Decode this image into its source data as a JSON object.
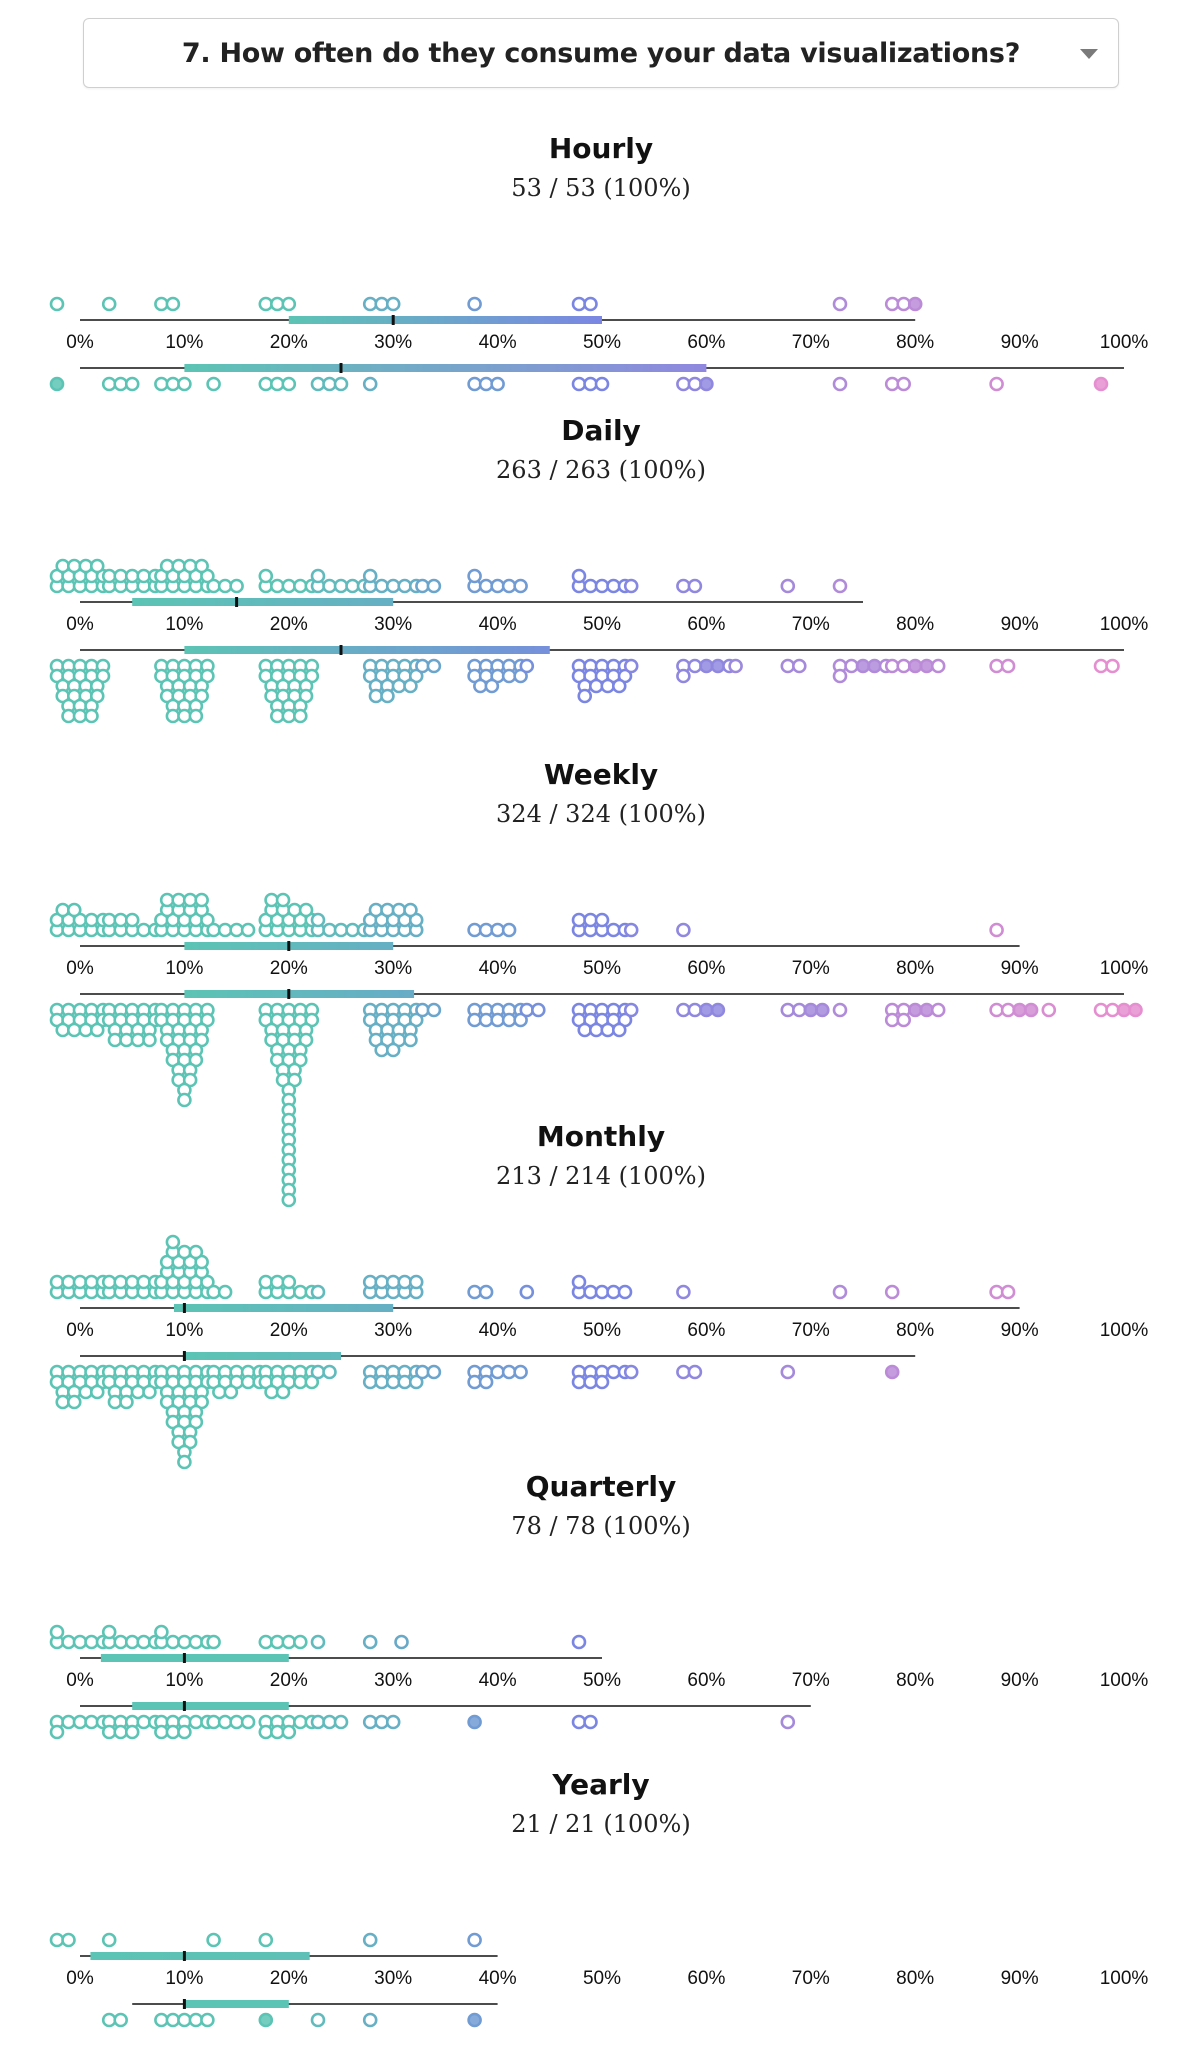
{
  "question": {
    "label": "7. How often do they consume your data visualizations?",
    "caret_icon": "chevron-down-icon"
  },
  "colors": {
    "low": "#5cc4b4",
    "mid": "#7b86e3",
    "high": "#e58fd0",
    "tick_marker": "#111111"
  },
  "axis": {
    "ticks": [
      "0%",
      "10%",
      "20%",
      "30%",
      "40%",
      "50%",
      "60%",
      "70%",
      "80%",
      "90%",
      "100%"
    ]
  },
  "chart_data": [
    {
      "type": "scatter",
      "title": "Hourly",
      "count_label": "53 / 53 (100%)",
      "xlim": [
        0,
        100
      ],
      "top": {
        "line": [
          0,
          80
        ],
        "box": [
          20,
          50
        ],
        "median": 30,
        "points": [
          [
            0,
            1
          ],
          [
            5,
            1
          ],
          [
            10,
            2
          ],
          [
            20,
            3
          ],
          [
            30,
            3
          ],
          [
            40,
            1
          ],
          [
            50,
            2
          ],
          [
            75,
            1
          ],
          [
            80,
            3
          ]
        ]
      },
      "bottom": {
        "line": [
          0,
          100
        ],
        "box": [
          10,
          60
        ],
        "median": 25,
        "points": [
          [
            0,
            1
          ],
          [
            5,
            3
          ],
          [
            10,
            3
          ],
          [
            15,
            1
          ],
          [
            20,
            3
          ],
          [
            25,
            3
          ],
          [
            30,
            1
          ],
          [
            40,
            3
          ],
          [
            50,
            3
          ],
          [
            60,
            3
          ],
          [
            75,
            1
          ],
          [
            80,
            2
          ],
          [
            90,
            1
          ],
          [
            100,
            1
          ]
        ]
      }
    },
    {
      "type": "scatter",
      "title": "Daily",
      "count_label": "263 / 263 (100%)",
      "xlim": [
        0,
        100
      ],
      "top": {
        "line": [
          0,
          75
        ],
        "box": [
          5,
          30
        ],
        "median": 15,
        "points": [
          [
            0,
            14
          ],
          [
            5,
            10
          ],
          [
            10,
            14
          ],
          [
            15,
            3
          ],
          [
            20,
            6
          ],
          [
            25,
            6
          ],
          [
            30,
            6
          ],
          [
            35,
            2
          ],
          [
            40,
            6
          ],
          [
            50,
            6
          ],
          [
            55,
            1
          ],
          [
            60,
            2
          ],
          [
            70,
            1
          ],
          [
            75,
            1
          ]
        ]
      },
      "bottom": {
        "line": [
          0,
          100
        ],
        "box": [
          10,
          45
        ],
        "median": 25,
        "points": [
          [
            0,
            24
          ],
          [
            10,
            24
          ],
          [
            20,
            24
          ],
          [
            30,
            16
          ],
          [
            35,
            2
          ],
          [
            40,
            12
          ],
          [
            45,
            1
          ],
          [
            50,
            15
          ],
          [
            55,
            1
          ],
          [
            60,
            6
          ],
          [
            65,
            1
          ],
          [
            70,
            2
          ],
          [
            75,
            6
          ],
          [
            80,
            5
          ],
          [
            90,
            2
          ],
          [
            100,
            2
          ]
        ]
      }
    },
    {
      "type": "scatter",
      "title": "Weekly",
      "count_label": "324 / 324 (100%)",
      "xlim": [
        0,
        100
      ],
      "top": {
        "line": [
          0,
          90
        ],
        "box": [
          10,
          30
        ],
        "median": 20,
        "points": [
          [
            0,
            12
          ],
          [
            5,
            8
          ],
          [
            10,
            18
          ],
          [
            15,
            4
          ],
          [
            20,
            16
          ],
          [
            25,
            6
          ],
          [
            30,
            14
          ],
          [
            40,
            4
          ],
          [
            50,
            8
          ],
          [
            55,
            1
          ],
          [
            60,
            1
          ],
          [
            90,
            1
          ]
        ]
      },
      "bottom": {
        "line": [
          0,
          100
        ],
        "box": [
          10,
          32
        ],
        "median": 20,
        "points": [
          [
            0,
            14
          ],
          [
            5,
            18
          ],
          [
            10,
            30
          ],
          [
            20,
            40
          ],
          [
            30,
            20
          ],
          [
            35,
            2
          ],
          [
            40,
            10
          ],
          [
            45,
            2
          ],
          [
            50,
            14
          ],
          [
            55,
            1
          ],
          [
            60,
            4
          ],
          [
            70,
            4
          ],
          [
            75,
            1
          ],
          [
            80,
            7
          ],
          [
            90,
            4
          ],
          [
            95,
            1
          ],
          [
            100,
            4
          ]
        ]
      }
    },
    {
      "type": "scatter",
      "title": "Monthly",
      "count_label": "213 / 214 (100%)",
      "xlim": [
        0,
        100
      ],
      "top": {
        "line": [
          0,
          90
        ],
        "box": [
          9,
          30
        ],
        "median": 10,
        "points": [
          [
            0,
            10
          ],
          [
            5,
            10
          ],
          [
            10,
            22
          ],
          [
            15,
            2
          ],
          [
            20,
            8
          ],
          [
            25,
            1
          ],
          [
            30,
            10
          ],
          [
            40,
            2
          ],
          [
            45,
            1
          ],
          [
            50,
            6
          ],
          [
            60,
            1
          ],
          [
            75,
            1
          ],
          [
            80,
            1
          ],
          [
            90,
            2
          ]
        ]
      },
      "bottom": {
        "line": [
          0,
          80
        ],
        "box": [
          10,
          25
        ],
        "median": 10,
        "points": [
          [
            0,
            16
          ],
          [
            5,
            16
          ],
          [
            10,
            30
          ],
          [
            15,
            12
          ],
          [
            20,
            12
          ],
          [
            25,
            2
          ],
          [
            30,
            10
          ],
          [
            35,
            2
          ],
          [
            40,
            7
          ],
          [
            50,
            8
          ],
          [
            55,
            1
          ],
          [
            60,
            2
          ],
          [
            70,
            1
          ],
          [
            80,
            1
          ]
        ]
      }
    },
    {
      "type": "scatter",
      "title": "Quarterly",
      "count_label": "78 / 78 (100%)",
      "xlim": [
        0,
        100
      ],
      "top": {
        "line": [
          0,
          50
        ],
        "box": [
          2,
          20
        ],
        "median": 10,
        "points": [
          [
            0,
            6
          ],
          [
            5,
            6
          ],
          [
            10,
            6
          ],
          [
            15,
            1
          ],
          [
            20,
            4
          ],
          [
            25,
            1
          ],
          [
            30,
            1
          ],
          [
            33,
            1
          ],
          [
            50,
            1
          ]
        ]
      },
      "bottom": {
        "line": [
          0,
          70
        ],
        "box": [
          5,
          20
        ],
        "median": 10,
        "points": [
          [
            0,
            6
          ],
          [
            5,
            8
          ],
          [
            10,
            8
          ],
          [
            15,
            4
          ],
          [
            20,
            8
          ],
          [
            25,
            3
          ],
          [
            30,
            3
          ],
          [
            40,
            1
          ],
          [
            50,
            2
          ],
          [
            70,
            1
          ]
        ]
      }
    },
    {
      "type": "scatter",
      "title": "Yearly",
      "count_label": "21 / 21 (100%)",
      "xlim": [
        0,
        100
      ],
      "top": {
        "line": [
          0,
          40
        ],
        "box": [
          1,
          22
        ],
        "median": 10,
        "points": [
          [
            0,
            2
          ],
          [
            5,
            1
          ],
          [
            15,
            1
          ],
          [
            20,
            1
          ],
          [
            30,
            1
          ],
          [
            40,
            1
          ]
        ]
      },
      "bottom": {
        "line": [
          5,
          40
        ],
        "box": [
          10,
          20
        ],
        "median": 10,
        "points": [
          [
            5,
            2
          ],
          [
            10,
            5
          ],
          [
            20,
            1
          ],
          [
            25,
            1
          ],
          [
            30,
            1
          ],
          [
            40,
            1
          ]
        ]
      }
    }
  ]
}
